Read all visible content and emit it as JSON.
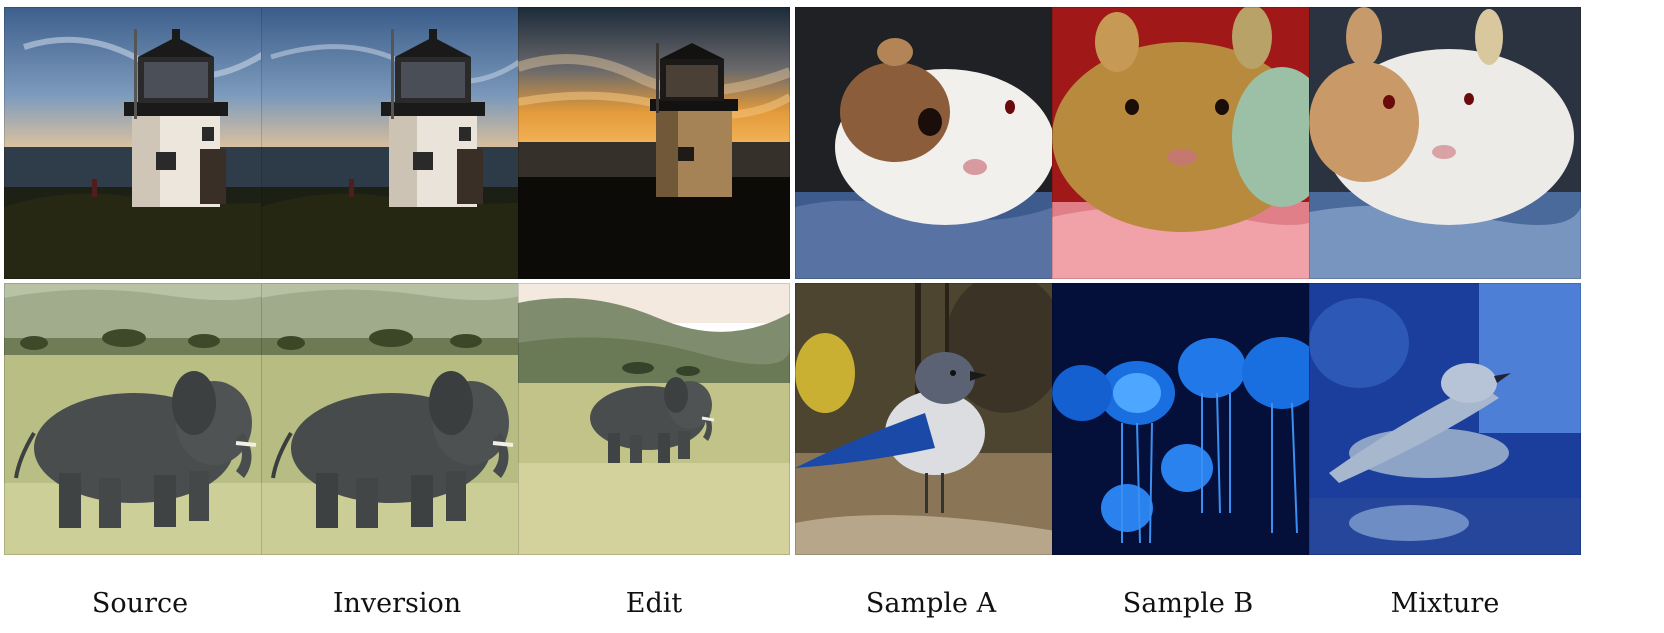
{
  "left_group": {
    "column_labels": [
      "Source",
      "Inversion",
      "Edit"
    ],
    "rows": [
      {
        "subject": "lighthouse",
        "panels": [
          "lighthouse-source",
          "lighthouse-inversion",
          "lighthouse-edit"
        ]
      },
      {
        "subject": "elephant",
        "panels": [
          "elephant-source",
          "elephant-inversion",
          "elephant-edit"
        ]
      }
    ]
  },
  "right_group": {
    "column_labels": [
      "Sample A",
      "Sample B",
      "Mixture"
    ],
    "rows": [
      {
        "subject": "guinea-pig-rabbit",
        "panels": [
          "guinea-pig",
          "rabbit",
          "rabbit-mixture"
        ]
      },
      {
        "subject": "bird-jellyfish",
        "panels": [
          "blue-jay",
          "jellyfish",
          "bird-jellyfish-mixture"
        ]
      }
    ]
  },
  "colors": {
    "sky_blue": "#5a7fa8",
    "sunset_orange": "#e39a3a",
    "grass": "#a9b179",
    "elephant_gray": "#4a4d4d",
    "wall_red": "#a01818",
    "jelly_blue": "#1a6fe0",
    "deep_navy": "#04103a"
  }
}
